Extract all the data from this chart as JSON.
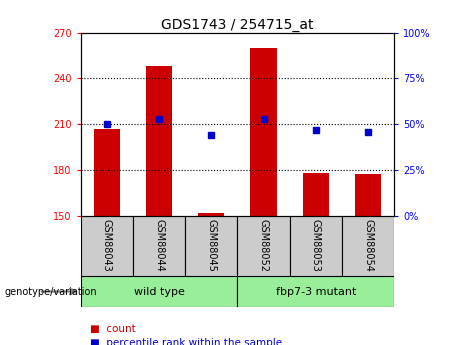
{
  "title": "GDS1743 / 254715_at",
  "samples": [
    "GSM88043",
    "GSM88044",
    "GSM88045",
    "GSM88052",
    "GSM88053",
    "GSM88054"
  ],
  "counts": [
    207,
    248,
    152,
    260,
    178,
    177
  ],
  "percentiles": [
    50,
    53,
    44,
    53,
    47,
    46
  ],
  "ylim_left": [
    150,
    270
  ],
  "ylim_right": [
    0,
    100
  ],
  "yticks_left": [
    150,
    180,
    210,
    240,
    270
  ],
  "yticks_right": [
    0,
    25,
    50,
    75,
    100
  ],
  "bar_color": "#cc0000",
  "dot_color": "#0000cc",
  "group1_label": "wild type",
  "group2_label": "fbp7-3 mutant",
  "group_bg_color": "#99ee99",
  "sample_bg_color": "#cccccc",
  "legend_bar_label": "count",
  "legend_dot_label": "percentile rank within the sample",
  "genotype_label": "genotype/variation"
}
